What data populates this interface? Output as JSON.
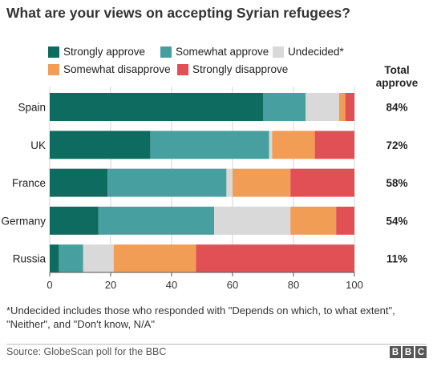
{
  "chart_data": {
    "type": "bar",
    "orientation": "horizontal",
    "stacked": true,
    "title": "What are your views on accepting Syrian refugees?",
    "categories": [
      "Spain",
      "UK",
      "France",
      "Germany",
      "Russia"
    ],
    "series": [
      {
        "name": "Strongly approve",
        "color": "#0e6b60",
        "values": [
          70,
          33,
          19,
          16,
          3
        ]
      },
      {
        "name": "Somewhat approve",
        "color": "#47a09f",
        "values": [
          14,
          39,
          39,
          38,
          8
        ]
      },
      {
        "name": "Undecided*",
        "color": "#d9d9d9",
        "values": [
          11,
          1,
          2,
          25,
          10
        ]
      },
      {
        "name": "Somewhat disapprove",
        "color": "#f29d55",
        "values": [
          2,
          14,
          19,
          15,
          27
        ]
      },
      {
        "name": "Strongly disapprove",
        "color": "#e05054",
        "values": [
          3,
          13,
          21,
          6,
          52
        ]
      }
    ],
    "xlim": [
      0,
      100
    ],
    "xticks": [
      "0",
      "20",
      "40",
      "60",
      "80",
      "100"
    ],
    "total_approve_label": "Total\napprove",
    "total_approve": [
      "84%",
      "72%",
      "58%",
      "54%",
      "11%"
    ],
    "grid": true,
    "legend": "top"
  },
  "legend_labels": {
    "strongly_approve": "Strongly approve",
    "somewhat_approve": "Somewhat approve",
    "undecided": "Undecided*",
    "somewhat_disapprove": "Somewhat disapprove",
    "strongly_disapprove": "Strongly disapprove"
  },
  "total_header_line1": "Total",
  "total_header_line2": "approve",
  "footnote": "*Undecided includes those who responded with \"Depends on which, to what extent\", \"Neither\", and \"Don't know, N/A\"",
  "source": "Source: GlobeScan poll for the BBC",
  "logo_letters": [
    "B",
    "B",
    "C"
  ]
}
